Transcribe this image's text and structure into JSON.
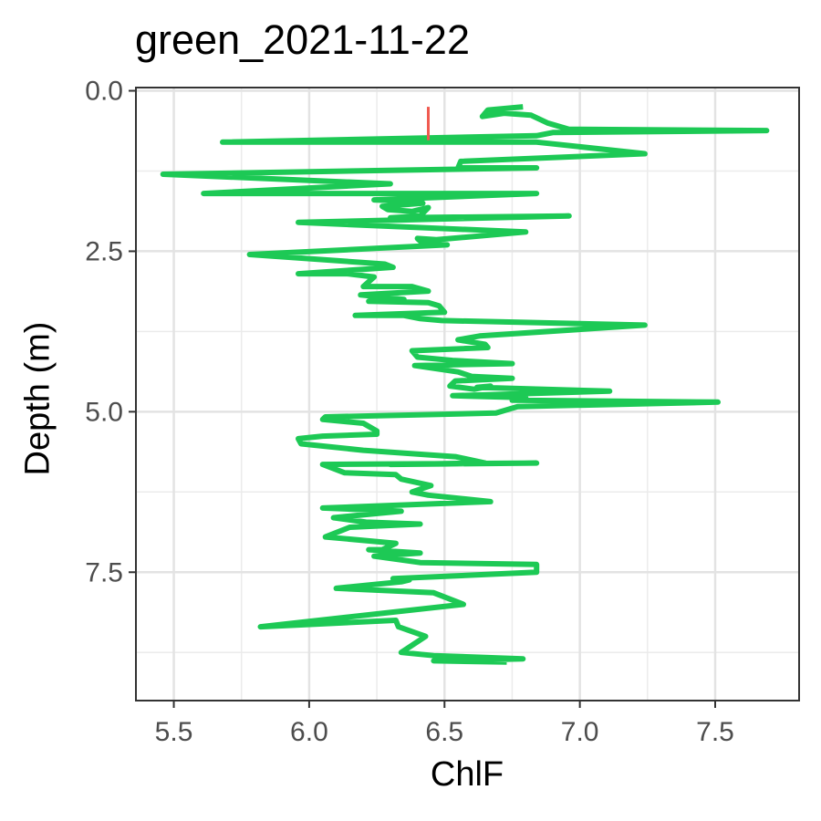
{
  "chart_data": {
    "type": "line",
    "title": "green_2021-11-22",
    "xlabel": "ChlF",
    "ylabel": "Depth (m)",
    "xlim": [
      5.36,
      7.81
    ],
    "ylim": [
      9.5,
      -0.05
    ],
    "y_reversed": true,
    "x_ticks": [
      5.5,
      6.0,
      6.5,
      7.0,
      7.5
    ],
    "x_tick_labels": [
      "5.5",
      "6.0",
      "6.5",
      "7.0",
      "7.5"
    ],
    "y_ticks": [
      0.0,
      2.5,
      5.0,
      7.5
    ],
    "y_tick_labels": [
      "0.0",
      "2.5",
      "5.0",
      "7.5"
    ],
    "grid": true,
    "legend": "none",
    "series": [
      {
        "color": "#1dc955",
        "x": [
          6.79,
          6.66,
          6.64,
          6.72,
          6.82,
          6.88,
          6.96,
          7.69,
          6.9,
          6.84,
          5.68,
          6.84,
          7.24,
          6.56,
          6.55,
          6.84,
          5.46,
          6.3,
          5.61,
          6.84,
          6.24,
          6.36,
          6.42,
          6.27,
          6.29,
          6.38,
          6.44,
          6.41,
          6.3,
          6.96,
          5.96,
          6.8,
          6.47,
          6.4,
          6.42,
          6.51,
          5.78,
          6.28,
          6.31,
          5.96,
          6.14,
          6.24,
          6.2,
          6.38,
          6.44,
          6.19,
          6.35,
          6.22,
          6.44,
          6.48,
          6.5,
          6.17,
          6.35,
          6.41,
          6.49,
          7.24,
          6.63,
          6.55,
          6.65,
          6.66,
          6.38,
          6.4,
          6.53,
          6.75,
          6.39,
          6.55,
          6.6,
          6.75,
          6.54,
          6.52,
          6.61,
          6.67,
          6.62,
          7.11,
          6.53,
          6.8,
          6.75,
          7.51,
          6.77,
          6.69,
          6.06,
          6.05,
          6.2,
          6.25,
          6.25,
          6.05,
          5.96,
          5.97,
          6.2,
          6.54,
          6.65,
          6.3,
          6.84,
          6.05,
          6.13,
          6.32,
          6.34,
          6.45,
          6.38,
          6.44,
          6.67,
          6.05,
          6.34,
          6.09,
          6.21,
          6.41,
          6.15,
          6.06,
          6.32,
          6.27,
          6.22,
          6.41,
          6.24,
          6.41,
          6.84,
          6.84,
          6.31,
          6.37,
          6.34,
          6.1,
          6.46,
          6.57,
          5.82,
          6.32,
          6.33,
          6.43,
          6.34,
          6.46,
          6.79,
          6.46,
          6.73
        ],
        "y": [
          0.25,
          0.3,
          0.4,
          0.35,
          0.38,
          0.5,
          0.6,
          0.62,
          0.65,
          0.7,
          0.8,
          0.8,
          0.98,
          1.1,
          1.2,
          1.2,
          1.3,
          1.45,
          1.6,
          1.6,
          1.7,
          1.72,
          1.75,
          1.8,
          1.85,
          1.88,
          1.82,
          1.95,
          1.98,
          1.95,
          2.05,
          2.2,
          2.32,
          2.3,
          2.38,
          2.4,
          2.55,
          2.7,
          2.75,
          2.85,
          2.85,
          2.9,
          3.05,
          3.05,
          3.12,
          3.18,
          3.25,
          3.28,
          3.3,
          3.35,
          3.45,
          3.5,
          3.5,
          3.55,
          3.58,
          3.65,
          3.82,
          3.88,
          3.95,
          4.0,
          4.05,
          4.15,
          4.2,
          4.25,
          4.28,
          4.38,
          4.45,
          4.48,
          4.52,
          4.6,
          4.65,
          4.6,
          4.62,
          4.68,
          4.75,
          4.78,
          4.82,
          4.85,
          4.92,
          5.02,
          5.08,
          5.12,
          5.18,
          5.3,
          5.35,
          5.38,
          5.42,
          5.5,
          5.6,
          5.7,
          5.8,
          5.82,
          5.8,
          5.82,
          5.95,
          5.98,
          6.05,
          6.15,
          6.25,
          6.3,
          6.4,
          6.5,
          6.55,
          6.65,
          6.72,
          6.75,
          6.8,
          6.95,
          7.05,
          7.15,
          7.15,
          7.2,
          7.25,
          7.35,
          7.38,
          7.5,
          7.6,
          7.62,
          7.65,
          7.75,
          7.82,
          8.0,
          8.35,
          8.25,
          8.35,
          8.5,
          8.75,
          8.8,
          8.85,
          8.88,
          8.9
        ]
      },
      {
        "color": "#f05a50",
        "x": [
          6.44,
          6.44
        ],
        "y": [
          0.25,
          0.77
        ]
      }
    ]
  }
}
